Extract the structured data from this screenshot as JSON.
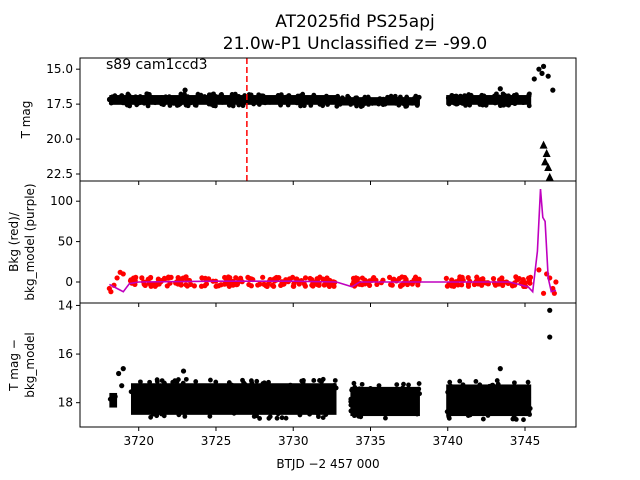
{
  "chart_data": {
    "title_line1": "AT2025fid  PS25apj",
    "title_line2": "21.0w-P1 Unclassified z= -99.0",
    "xlabel": "BTJD −2 457 000",
    "xticks": [
      "3720",
      "3725",
      "3730",
      "3735",
      "3740",
      "3745"
    ],
    "xlim": [
      3716.2,
      3748.3
    ],
    "panels": [
      {
        "name": "lightcurve",
        "type": "scatter",
        "ylabel": "T mag",
        "yticks": [
          "15.0",
          "17.5",
          "20.0",
          "22.5"
        ],
        "ylim": [
          23.0,
          14.2
        ],
        "inverted": true,
        "annotation": "s89 cam1ccd3",
        "marker_x": 3727.0,
        "segments": [
          {
            "x0": 3718.1,
            "x1": 3732.8,
            "level": 17.2,
            "band": 0.7
          },
          {
            "x0": 3732.8,
            "x1": 3738.2,
            "level": 17.3,
            "band": 0.6
          },
          {
            "x0": 3739.9,
            "x1": 3745.4,
            "level": 17.2,
            "band": 0.7
          }
        ],
        "points": [
          [
            3718.9,
            16.9
          ],
          [
            3723.0,
            16.5
          ],
          [
            3743.4,
            16.4
          ],
          [
            3745.6,
            15.7
          ],
          [
            3745.9,
            15.0
          ],
          [
            3746.2,
            14.8
          ],
          [
            3746.5,
            15.5
          ],
          [
            3746.8,
            16.5
          ],
          [
            3746.1,
            15.3
          ],
          [
            3746.6,
            13.9
          ]
        ],
        "upper_limits": [
          [
            3746.2,
            20.4
          ],
          [
            3746.4,
            21.0
          ],
          [
            3746.5,
            22.0
          ],
          [
            3746.6,
            22.7
          ],
          [
            3746.3,
            21.6
          ]
        ]
      },
      {
        "name": "background",
        "type": "line",
        "ylabel": "Bkg (red)/",
        "ylabel2": "bkg_model (purple)",
        "yticks": [
          "0",
          "50",
          "100"
        ],
        "ylim": [
          -26,
          125
        ],
        "points_color": "#ff0000",
        "model_color": "#bf00bf",
        "model": [
          [
            3718.1,
            -3
          ],
          [
            3718.6,
            -8
          ],
          [
            3719.0,
            -12
          ],
          [
            3719.4,
            -2
          ],
          [
            3720.0,
            0
          ],
          [
            3725.0,
            1
          ],
          [
            3730.0,
            1
          ],
          [
            3732.8,
            0
          ],
          [
            3733.3,
            -3
          ],
          [
            3733.8,
            -6
          ],
          [
            3734.3,
            0
          ],
          [
            3738.2,
            0
          ],
          [
            3739.9,
            0
          ],
          [
            3744.0,
            0
          ],
          [
            3745.2,
            -6
          ],
          [
            3745.5,
            -12
          ],
          [
            3745.8,
            38
          ],
          [
            3746.0,
            115
          ],
          [
            3746.15,
            80
          ],
          [
            3746.3,
            75
          ],
          [
            3746.5,
            5
          ],
          [
            3746.7,
            -12
          ],
          [
            3747.0,
            -10
          ]
        ],
        "bkg_points": [
          [
            3718.1,
            -8
          ],
          [
            3718.2,
            -12
          ],
          [
            3718.4,
            -4
          ],
          [
            3718.6,
            5
          ],
          [
            3718.8,
            12
          ],
          [
            3719.0,
            10
          ],
          [
            3746.2,
            -14
          ],
          [
            3746.4,
            10
          ],
          [
            3746.6,
            5
          ],
          [
            3746.8,
            -8
          ],
          [
            3747.0,
            0
          ],
          [
            3746.9,
            -14
          ],
          [
            3745.9,
            15
          ],
          [
            3741.0,
            2
          ],
          [
            3743.5,
            5
          ]
        ]
      },
      {
        "name": "residual",
        "type": "scatter",
        "ylabel": "T mag −",
        "ylabel2": "bkg_model",
        "yticks": [
          "14",
          "16",
          "18"
        ],
        "ylim": [
          19.0,
          13.9
        ],
        "segments": [
          {
            "x0": 3718.1,
            "x1": 3718.6,
            "level": 17.9,
            "band": 0.6
          },
          {
            "x0": 3719.5,
            "x1": 3732.8,
            "level": 17.85,
            "band": 1.3
          },
          {
            "x0": 3733.7,
            "x1": 3738.2,
            "level": 17.95,
            "band": 1.2
          },
          {
            "x0": 3739.9,
            "x1": 3745.4,
            "level": 17.9,
            "band": 1.3
          }
        ],
        "points": [
          [
            3718.7,
            16.8
          ],
          [
            3719.0,
            16.6
          ],
          [
            3722.9,
            16.7
          ],
          [
            3743.4,
            16.6
          ],
          [
            3746.6,
            15.3
          ],
          [
            3746.6,
            14.2
          ],
          [
            3718.9,
            17.3
          ]
        ]
      }
    ]
  }
}
